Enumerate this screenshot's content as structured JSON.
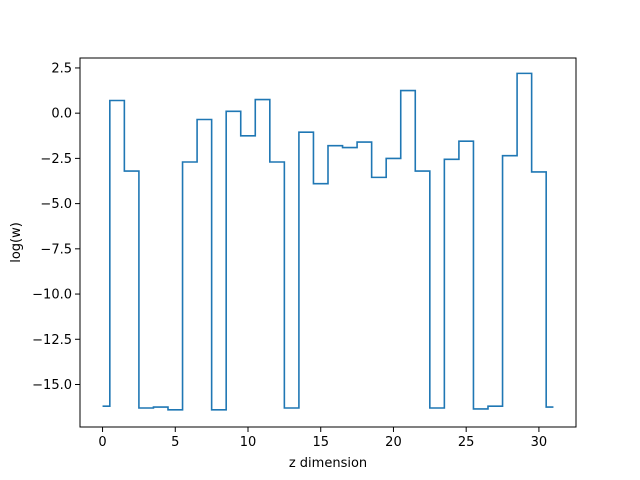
{
  "chart_data": {
    "type": "line",
    "drawstyle": "steps-mid",
    "title": "",
    "xlabel": "z dimension",
    "ylabel": "log(w)",
    "xlim": [
      -1.55,
      32.55
    ],
    "ylim": [
      -17.35,
      3.05
    ],
    "xticks": [
      0,
      5,
      10,
      15,
      20,
      25,
      30
    ],
    "yticks": [
      2.5,
      0.0,
      -2.5,
      -5.0,
      -7.5,
      -10.0,
      -12.5,
      -15.0
    ],
    "ytick_labels": [
      "2.5",
      "0.0",
      "−2.5",
      "−5.0",
      "−7.5",
      "−10.0",
      "−12.5",
      "−15.0"
    ],
    "xtick_labels": [
      "0",
      "5",
      "10",
      "15",
      "20",
      "25",
      "30"
    ],
    "grid": false,
    "series": [
      {
        "color": "#1f77b4",
        "x": [
          0,
          1,
          2,
          3,
          4,
          5,
          6,
          7,
          8,
          9,
          10,
          11,
          12,
          13,
          14,
          15,
          16,
          17,
          18,
          19,
          20,
          21,
          22,
          23,
          24,
          25,
          26,
          27,
          28,
          29,
          30,
          31
        ],
        "values": [
          -16.2,
          0.7,
          -3.2,
          -16.3,
          -16.25,
          -16.4,
          -2.7,
          -0.35,
          -16.4,
          0.1,
          -1.25,
          0.75,
          -2.7,
          -16.3,
          -1.05,
          -3.9,
          -1.8,
          -1.9,
          -1.6,
          -3.55,
          -2.5,
          1.25,
          -3.2,
          -16.3,
          -2.55,
          -1.55,
          -16.35,
          -16.2,
          -2.35,
          2.2,
          -3.25,
          -16.25
        ]
      }
    ]
  }
}
